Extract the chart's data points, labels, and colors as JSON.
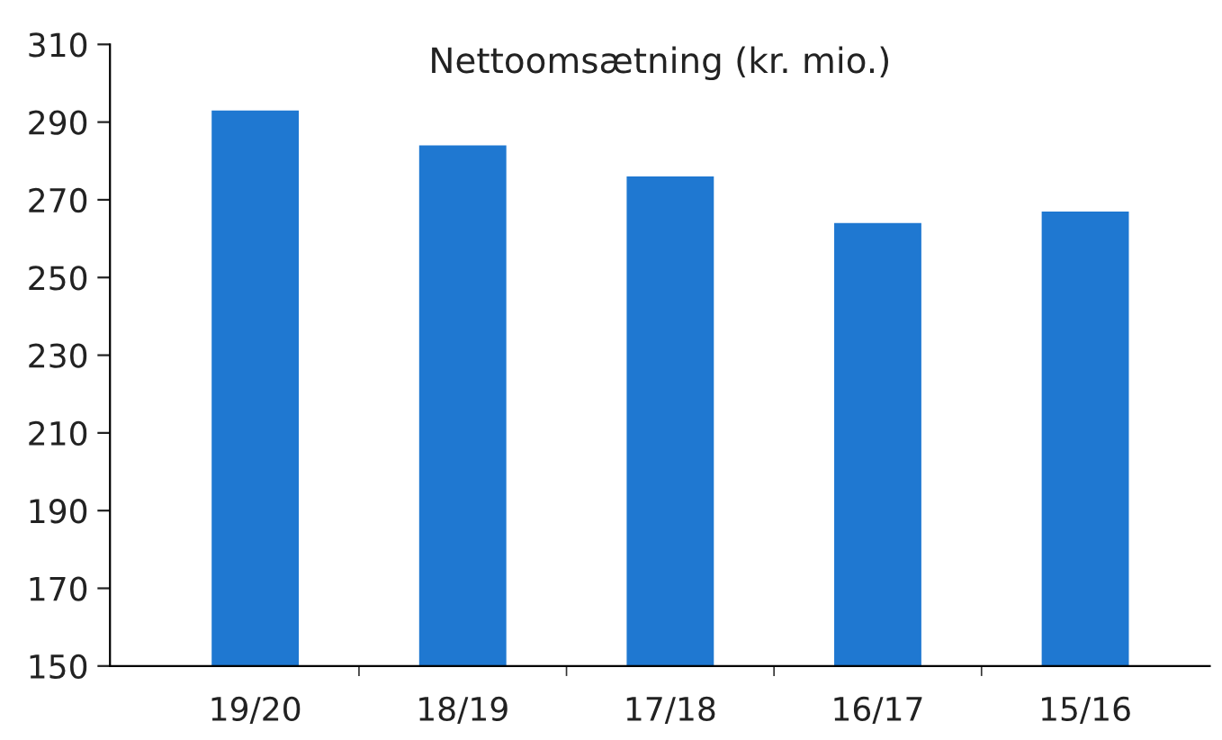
{
  "chart_data": {
    "type": "bar",
    "title": "Nettoomsætning (kr. mio.)",
    "categories": [
      "19/20",
      "18/19",
      "17/18",
      "16/17",
      "15/16"
    ],
    "values": [
      293,
      284,
      276,
      264,
      267
    ],
    "color": "#1f78d1",
    "ylim": [
      150,
      310
    ],
    "yticks": [
      150,
      170,
      190,
      210,
      230,
      250,
      270,
      290,
      310
    ],
    "grid": false
  }
}
